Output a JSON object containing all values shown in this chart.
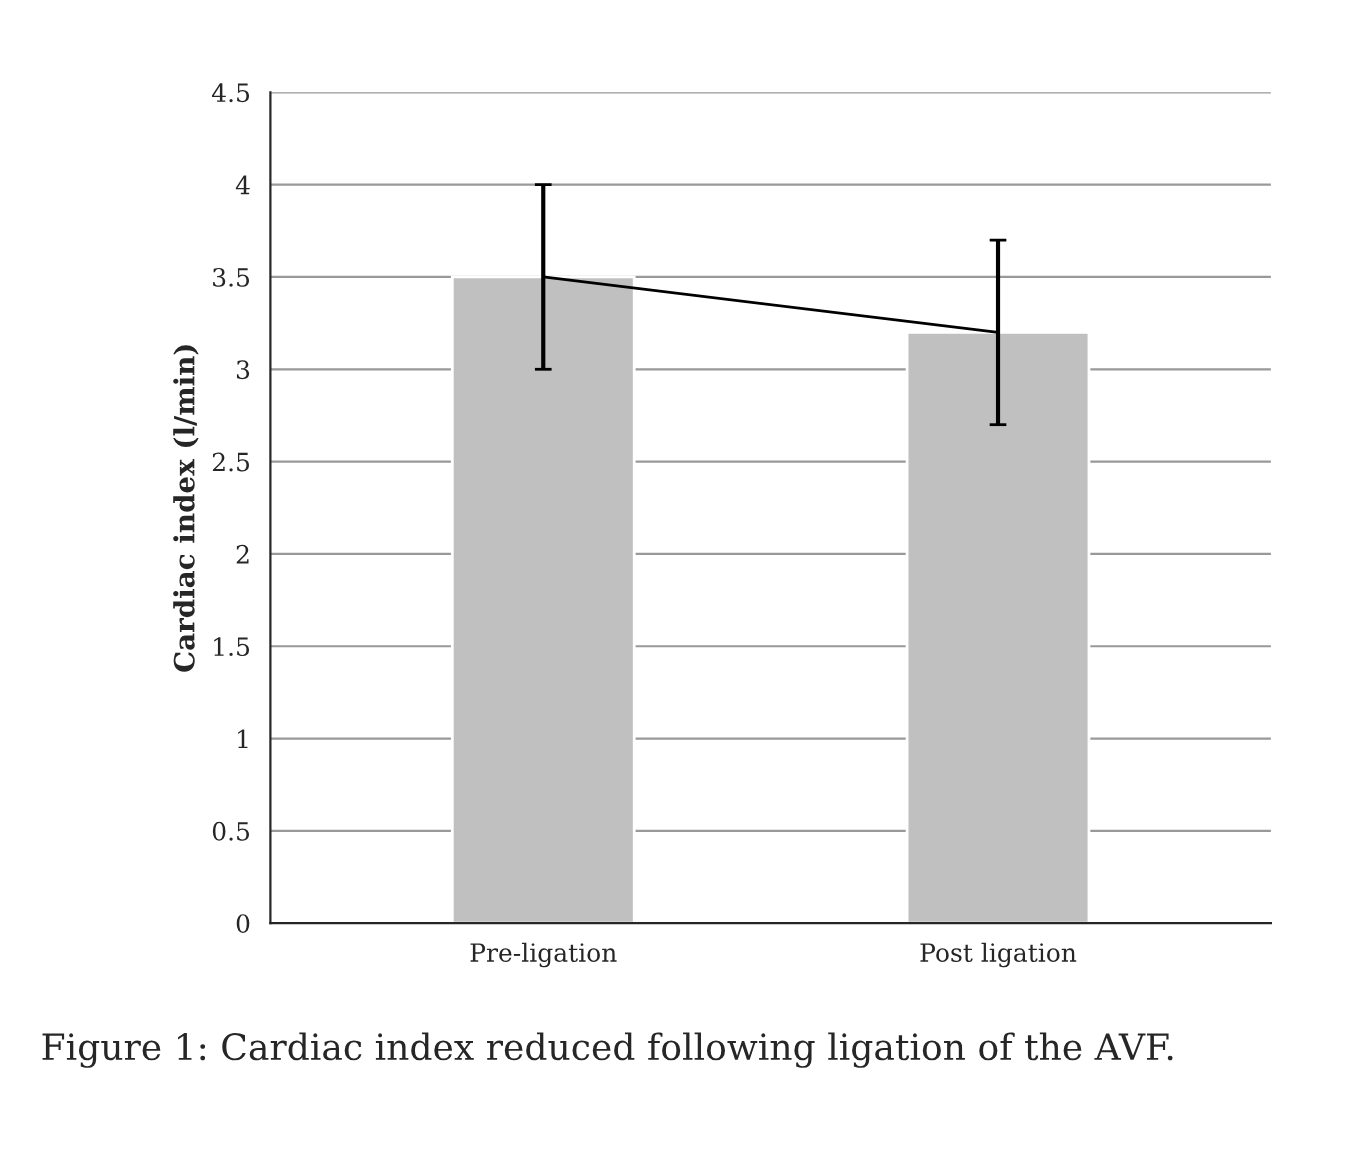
{
  "chart_data": {
    "type": "bar",
    "ylabel": "Cardiac index (l/min)",
    "categories": [
      "Pre-ligation",
      "Post ligation"
    ],
    "series": [
      {
        "color": "#c0c0c0",
        "values": [
          3.5,
          3.2
        ],
        "errors": [
          0.5,
          0.5
        ]
      },
      {
        "type": "line",
        "color": "#000000",
        "values": [
          3.5,
          3.2
        ]
      }
    ],
    "ylim": [
      0,
      4.5
    ],
    "yticks": [
      0,
      0.5,
      1,
      1.5,
      2,
      2.5,
      3,
      3.5,
      4,
      4.5
    ],
    "grid": "y",
    "legend": false,
    "annotations": [
      "Figure 1: Cardiac index reduced following ligation of the AVF."
    ]
  }
}
